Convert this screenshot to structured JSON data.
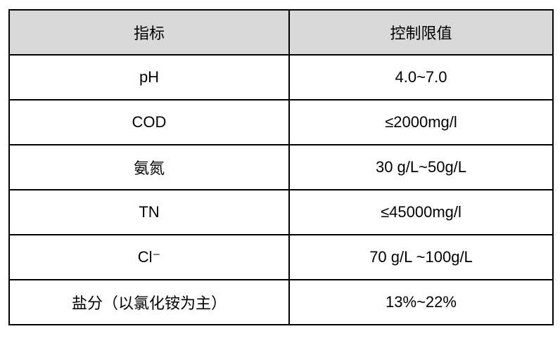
{
  "table": {
    "header_bg": "#d9d9d9",
    "border_color": "#000000",
    "text_color": "#000000",
    "headers": {
      "indicator": "指标",
      "limit": "控制限值"
    },
    "rows": [
      {
        "indicator": "pH",
        "limit": "4.0~7.0"
      },
      {
        "indicator": "COD",
        "limit": "≤2000mg/l"
      },
      {
        "indicator": "氨氮",
        "limit": "30 g/L~50g/L"
      },
      {
        "indicator": "TN",
        "limit": "≤45000mg/l"
      },
      {
        "indicator": "Cl⁻",
        "limit": "70 g/L ~100g/L"
      },
      {
        "indicator": "盐分（以氯化铵为主）",
        "limit": "13%~22%"
      }
    ]
  }
}
